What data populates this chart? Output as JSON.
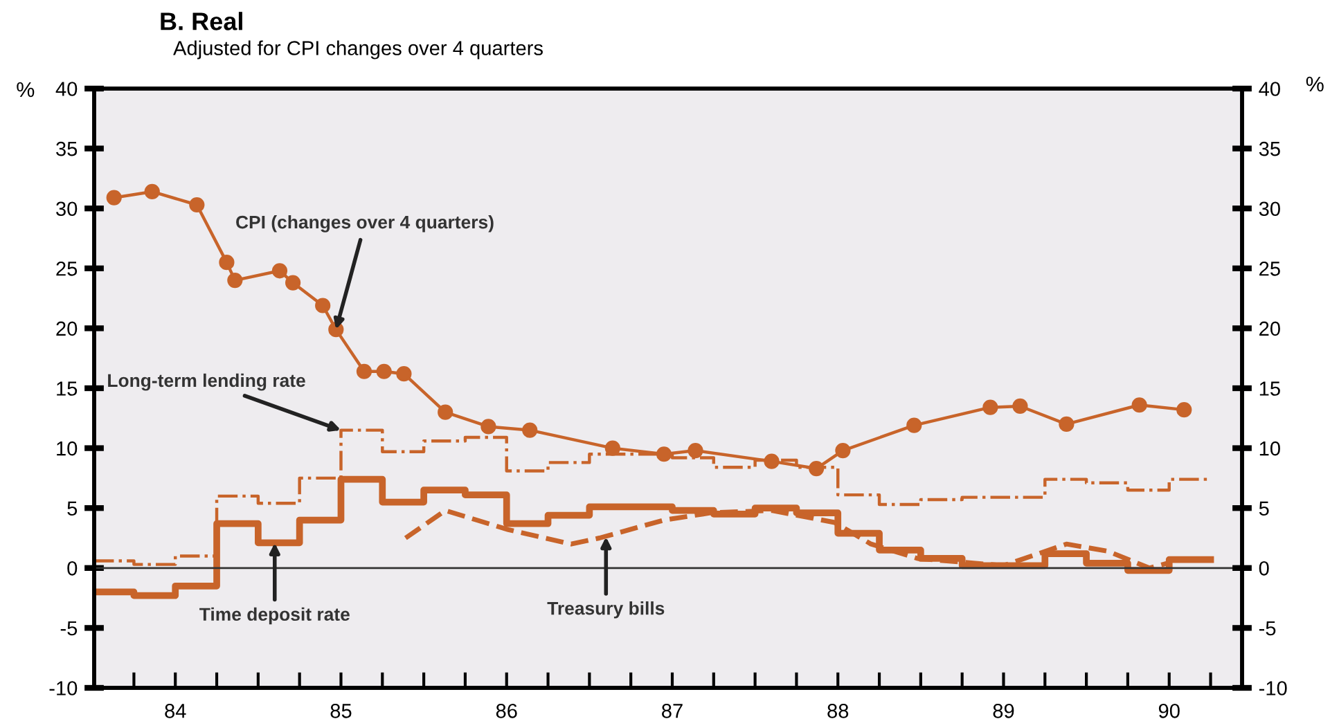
{
  "chart_data": {
    "type": "line",
    "title": "B. Real",
    "subtitle": "Adjusted for CPI changes over 4 quarters",
    "ylabel": "%",
    "y2label": "%",
    "xlim": [
      1983.51,
      1990.44
    ],
    "xticks": [
      {
        "value": 1983.75,
        "label": null
      },
      {
        "value": 1984,
        "label": "84"
      },
      {
        "value": 1984.25,
        "label": null
      },
      {
        "value": 1984.5,
        "label": null
      },
      {
        "value": 1984.75,
        "label": null
      },
      {
        "value": 1985,
        "label": "85"
      },
      {
        "value": 1985.25,
        "label": null
      },
      {
        "value": 1985.5,
        "label": null
      },
      {
        "value": 1985.75,
        "label": null
      },
      {
        "value": 1986,
        "label": "86"
      },
      {
        "value": 1986.25,
        "label": null
      },
      {
        "value": 1986.5,
        "label": null
      },
      {
        "value": 1986.75,
        "label": null
      },
      {
        "value": 1987,
        "label": "87"
      },
      {
        "value": 1987.25,
        "label": null
      },
      {
        "value": 1987.5,
        "label": null
      },
      {
        "value": 1987.75,
        "label": null
      },
      {
        "value": 1988,
        "label": "88"
      },
      {
        "value": 1988.25,
        "label": null
      },
      {
        "value": 1988.5,
        "label": null
      },
      {
        "value": 1988.75,
        "label": null
      },
      {
        "value": 1989,
        "label": "89"
      },
      {
        "value": 1989.25,
        "label": null
      },
      {
        "value": 1989.5,
        "label": null
      },
      {
        "value": 1989.75,
        "label": null
      },
      {
        "value": 1990,
        "label": "90"
      },
      {
        "value": 1990.25,
        "label": null
      }
    ],
    "ylim": [
      -10,
      40
    ],
    "yticks": [
      -10,
      -5,
      0,
      5,
      10,
      15,
      20,
      25,
      30,
      35,
      40
    ],
    "y2lim": [
      -10,
      40
    ],
    "y2ticks": [
      -10,
      -5,
      0,
      5,
      10,
      15,
      20,
      25,
      30,
      35,
      40
    ],
    "grid": false,
    "ref_lines": [
      {
        "axis": "y",
        "value": 0,
        "color": "#333333"
      }
    ],
    "series": [
      {
        "color": "#c8642a",
        "marker": "circle",
        "line_style": "solid",
        "x": [
          1983.63,
          1983.86,
          1984.13,
          1984.31,
          1984.36,
          1984.63,
          1984.71,
          1984.89,
          1984.97,
          1985.14,
          1985.26,
          1985.38,
          1985.63,
          1985.89,
          1986.14,
          1986.64,
          1986.95,
          1987.14,
          1987.6,
          1987.87,
          1988.03,
          1988.46,
          1988.92,
          1989.1,
          1989.38,
          1989.82,
          1990.09
        ],
        "values": [
          30.9,
          31.4,
          30.3,
          25.5,
          24.0,
          24.8,
          23.8,
          21.9,
          19.9,
          16.4,
          16.4,
          16.2,
          13.0,
          11.8,
          11.5,
          10.0,
          9.5,
          9.8,
          8.9,
          8.3,
          9.8,
          11.9,
          13.4,
          13.5,
          12.0,
          13.6,
          13.2
        ]
      },
      {
        "type": "step",
        "color": "#c8642a",
        "marker": "none",
        "line_style": "dashdot",
        "x": [
          1983.51,
          1983.75,
          1984.0,
          1984.25,
          1984.5,
          1984.75,
          1985.0,
          1985.25,
          1985.5,
          1985.75,
          1986.0,
          1986.25,
          1986.5,
          1986.75,
          1987.0,
          1987.25,
          1987.5,
          1987.75,
          1988.0,
          1988.25,
          1988.5,
          1988.75,
          1989.0,
          1989.25,
          1989.5,
          1989.75,
          1990.0,
          1990.25
        ],
        "values": [
          0.6,
          0.3,
          1.0,
          6.0,
          5.4,
          7.5,
          11.5,
          9.7,
          10.6,
          10.9,
          8.1,
          8.8,
          9.5,
          9.5,
          9.2,
          8.4,
          9.0,
          8.4,
          6.1,
          5.3,
          5.7,
          5.9,
          5.9,
          7.4,
          7.1,
          6.5,
          7.4,
          7.4
        ]
      },
      {
        "type": "step",
        "color": "#c8642a",
        "marker": "none",
        "line_style": "solid",
        "x": [
          1983.51,
          1983.75,
          1984.0,
          1984.25,
          1984.5,
          1984.75,
          1985.0,
          1985.25,
          1985.5,
          1985.75,
          1986.0,
          1986.25,
          1986.5,
          1986.75,
          1987.0,
          1987.25,
          1987.5,
          1987.75,
          1988.0,
          1988.25,
          1988.5,
          1988.75,
          1989.0,
          1989.25,
          1989.5,
          1989.75,
          1990.0,
          1990.25
        ],
        "values": [
          -2.0,
          -2.3,
          -1.5,
          3.7,
          2.1,
          4.0,
          7.4,
          5.5,
          6.5,
          6.1,
          3.7,
          4.4,
          5.1,
          5.1,
          4.8,
          4.5,
          5.0,
          4.6,
          2.9,
          1.5,
          0.8,
          0.2,
          0.2,
          1.2,
          0.4,
          -0.2,
          0.7,
          0.7
        ]
      },
      {
        "color": "#c8642a",
        "marker": "none",
        "line_style": "dashed",
        "x": [
          1985.39,
          1985.63,
          1986.01,
          1986.39,
          1986.56,
          1986.95,
          1987.23,
          1987.6,
          1987.98,
          1988.2,
          1988.48,
          1989.0,
          1989.38,
          1989.63,
          1989.88,
          1989.99
        ],
        "values": [
          2.5,
          4.8,
          3.2,
          2.0,
          2.5,
          4.0,
          4.6,
          4.8,
          3.8,
          2.0,
          0.8,
          0.2,
          2.0,
          1.4,
          0.0,
          0.4
        ]
      }
    ],
    "annotations": [
      {
        "text": "CPI (changes over 4 quarters)",
        "x": 1984.97,
        "y": 19.9
      },
      {
        "text": "Long-term lending rate",
        "x": 1985.0,
        "y": 11.5
      },
      {
        "text": "Time deposit rate",
        "x": 1984.6,
        "y": 2.1
      },
      {
        "text": "Treasury bills",
        "x": 1986.6,
        "y": 2.6
      }
    ]
  }
}
